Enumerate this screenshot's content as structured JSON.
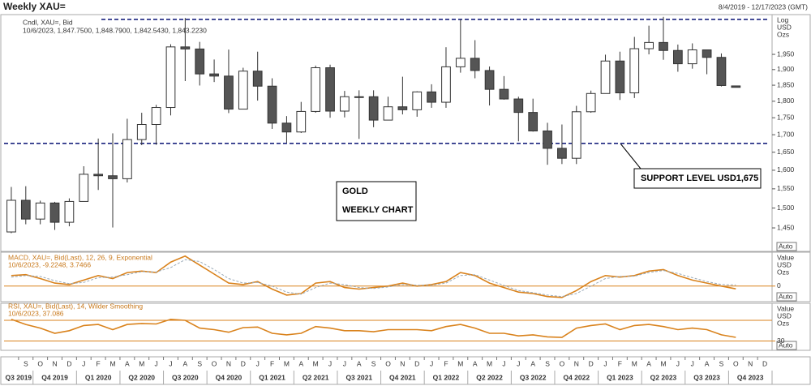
{
  "chart_data": [
    {
      "type": "candlestick",
      "title": "Weekly XAU=",
      "date_range": "8/4/2019 - 12/17/2023 (GMT)",
      "legend": "Cndl, XAU=, Bid",
      "legend_values": "10/6/2023, 1,847.7500, 1,848.7900, 1,842.5430, 1,843.2230",
      "y_axis_label": [
        "Log",
        "USD",
        "Ozs"
      ],
      "auto_label": "Auto",
      "log_scale": true,
      "categories": [
        null,
        "S",
        "O",
        "N",
        "D",
        "J",
        "F",
        "M",
        "A",
        "M",
        "J",
        "J",
        "A",
        "S",
        "O",
        "N",
        "D",
        "J",
        "F",
        "M",
        "A",
        "M",
        "J",
        "J",
        "A",
        "S",
        "O",
        "N",
        "D",
        "J",
        "F",
        "M",
        "A",
        "M",
        "J",
        "J",
        "A",
        "S",
        "O",
        "N",
        "D",
        "J",
        "F",
        "M",
        "A",
        "M",
        "J",
        "J",
        "A",
        "S",
        "O",
        "N",
        "D"
      ],
      "quarters": [
        "Q3 2019",
        "Q4 2019",
        "Q1 2020",
        "Q2 2020",
        "Q3 2020",
        "Q4 2020",
        "Q1 2021",
        "Q2 2021",
        "Q3 2021",
        "Q4 2021",
        "Q1 2022",
        "Q2 2022",
        "Q3 2022",
        "Q4 2022",
        "Q1 2023",
        "Q2 2023",
        "Q3 2023",
        "Q4 2023"
      ],
      "open": [
        1440,
        1520,
        1472,
        1513,
        1464,
        1517,
        1589,
        1585,
        1577,
        1686,
        1730,
        1781,
        1975,
        1968,
        1886,
        1879,
        1776,
        1895,
        1847,
        1734,
        1708,
        1769,
        1906,
        1770,
        1814,
        1814,
        1743,
        1783,
        1774,
        1829,
        1797,
        1909,
        1937,
        1897,
        1837,
        1807,
        1766,
        1711,
        1661,
        1633,
        1768,
        1824,
        1928,
        1826,
        1969,
        1990,
        1963,
        1919,
        1965,
        1940,
        1847.75,
        null,
        null
      ],
      "high": [
        1555,
        1557,
        1519,
        1516,
        1525,
        1611,
        1689,
        1704,
        1747,
        1765,
        1789,
        1984,
        2075,
        1992,
        1933,
        1966,
        1906,
        1959,
        1872,
        1755,
        1798,
        1913,
        1916,
        1832,
        1834,
        1834,
        1814,
        1877,
        1831,
        1853,
        1974,
        2070,
        1998,
        1910,
        1879,
        1814,
        1808,
        1735,
        1730,
        1786,
        1833,
        1949,
        1959,
        2009,
        2048,
        2079,
        1983,
        1987,
        1966,
        1953,
        1848.79,
        null,
        null
      ],
      "low": [
        1437,
        1459,
        1459,
        1445,
        1454,
        1517,
        1547,
        1451,
        1567,
        1670,
        1671,
        1757,
        1863,
        1849,
        1860,
        1764,
        1775,
        1802,
        1717,
        1677,
        1705,
        1765,
        1750,
        1751,
        1688,
        1722,
        1746,
        1760,
        1753,
        1780,
        1780,
        1890,
        1872,
        1787,
        1805,
        1681,
        1709,
        1615,
        1617,
        1617,
        1765,
        1824,
        1804,
        1810,
        1950,
        1932,
        1893,
        1903,
        1885,
        1846,
        1842.543,
        null,
        null
      ],
      "close": [
        1520,
        1472,
        1513,
        1464,
        1517,
        1589,
        1585,
        1577,
        1686,
        1730,
        1781,
        1975,
        1968,
        1886,
        1879,
        1776,
        1895,
        1847,
        1734,
        1708,
        1769,
        1906,
        1770,
        1814,
        1814,
        1743,
        1783,
        1774,
        1829,
        1797,
        1909,
        1937,
        1897,
        1837,
        1807,
        1766,
        1711,
        1661,
        1633,
        1768,
        1824,
        1928,
        1826,
        1969,
        1990,
        1963,
        1919,
        1965,
        1940,
        1849,
        1843.223,
        null,
        null
      ],
      "up_color": "#ffffff",
      "down_color": "#555555",
      "ylim": [
        1393,
        2087
      ],
      "yticks": [
        {
          "value": 1450,
          "label": "1,450"
        },
        {
          "value": 1500,
          "label": "1,500"
        },
        {
          "value": 1550,
          "label": "1,550"
        },
        {
          "value": 1600,
          "label": "1,600"
        },
        {
          "value": 1650,
          "label": "1,650"
        },
        {
          "value": 1700,
          "label": "1,700"
        },
        {
          "value": 1750,
          "label": "1,750"
        },
        {
          "value": 1800,
          "label": "1,800"
        },
        {
          "value": 1850,
          "label": "1,850"
        },
        {
          "value": 1900,
          "label": "1,900"
        },
        {
          "value": 1950,
          "label": "1,950"
        }
      ],
      "hlines": [
        2070,
        1675
      ],
      "hline_color": "#1a237e",
      "annotations": [
        "SUPPORT LEVEL USD1,675",
        "GOLD",
        "WEEKLY CHART"
      ]
    },
    {
      "type": "line",
      "legend": "MACD, XAU=, Bid(Last), 12, 26, 9, Exponential",
      "legend_values": "10/6/2023, -9.2248, 3.7466",
      "y_axis_label": [
        "Value",
        "USD",
        "Ozs"
      ],
      "auto_label": "Auto",
      "ylim": [
        -52,
        113
      ],
      "yticks": [
        0
      ],
      "levels": [
        0
      ],
      "series": [
        {
          "name": "MACD",
          "color": "#d9821c",
          "dash": false,
          "values": [
            35,
            38,
            25,
            10,
            5,
            20,
            35,
            25,
            45,
            50,
            45,
            80,
            100,
            70,
            40,
            10,
            5,
            15,
            -10,
            -30,
            -25,
            10,
            15,
            -5,
            -10,
            -5,
            0,
            10,
            0,
            5,
            15,
            45,
            35,
            10,
            -5,
            -20,
            -25,
            -35,
            -38,
            -15,
            15,
            35,
            30,
            35,
            50,
            55,
            35,
            20,
            10,
            0,
            -9.2248,
            null,
            null
          ]
        },
        {
          "name": "Signal",
          "color": "#9aaab8",
          "dash": true,
          "values": [
            30,
            35,
            32,
            18,
            8,
            12,
            28,
            30,
            38,
            48,
            47,
            62,
            88,
            82,
            55,
            25,
            10,
            12,
            0,
            -20,
            -27,
            -5,
            10,
            5,
            -5,
            -8,
            -3,
            5,
            3,
            3,
            10,
            35,
            38,
            20,
            2,
            -15,
            -22,
            -30,
            -35,
            -25,
            0,
            25,
            32,
            33,
            45,
            52,
            42,
            28,
            15,
            5,
            3.7466,
            null,
            null
          ]
        }
      ]
    },
    {
      "type": "line",
      "legend": "RSI, XAU=, Bid(Last), 14, Wilder Smoothing",
      "legend_values": "10/6/2023, 37.086",
      "y_axis_label": [
        "Value",
        "USD",
        "Ozs"
      ],
      "auto_label": "Auto",
      "ylim": [
        12,
        103
      ],
      "yticks": [
        30
      ],
      "levels": [
        70,
        30
      ],
      "series": [
        {
          "name": "RSI",
          "color": "#d9821c",
          "dash": false,
          "values": [
            72,
            62,
            55,
            45,
            50,
            60,
            62,
            52,
            62,
            64,
            63,
            72,
            70,
            55,
            52,
            47,
            56,
            57,
            45,
            42,
            45,
            58,
            55,
            50,
            50,
            48,
            52,
            52,
            52,
            50,
            58,
            62,
            55,
            45,
            45,
            40,
            42,
            38,
            37,
            55,
            60,
            63,
            52,
            60,
            62,
            58,
            52,
            55,
            52,
            42,
            37.086,
            null,
            null
          ]
        }
      ]
    }
  ]
}
